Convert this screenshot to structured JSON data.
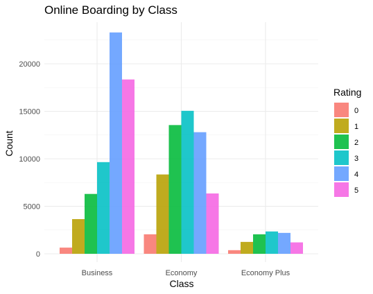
{
  "chart_data": {
    "type": "bar",
    "title": "Online Boarding by Class",
    "xlabel": "Class",
    "ylabel": "Count",
    "categories": [
      "Business",
      "Economy",
      "Economy Plus"
    ],
    "yticks": [
      0,
      5000,
      10000,
      15000,
      20000
    ],
    "ylim": [
      0,
      24000
    ],
    "grid": true,
    "legend": {
      "title": "Rating",
      "placement": "right"
    },
    "series": [
      {
        "name": "0",
        "color": "#F8766D",
        "values": [
          650,
          2050,
          380
        ]
      },
      {
        "name": "1",
        "color": "#B79F00",
        "values": [
          3650,
          8350,
          1250
        ]
      },
      {
        "name": "2",
        "color": "#00BA38",
        "values": [
          6300,
          13550,
          2050
        ]
      },
      {
        "name": "3",
        "color": "#00BFC4",
        "values": [
          9650,
          15050,
          2350
        ]
      },
      {
        "name": "4",
        "color": "#619CFF",
        "values": [
          23300,
          12800,
          2200
        ]
      },
      {
        "name": "5",
        "color": "#F564E3",
        "values": [
          18350,
          6350,
          1200
        ]
      }
    ]
  }
}
